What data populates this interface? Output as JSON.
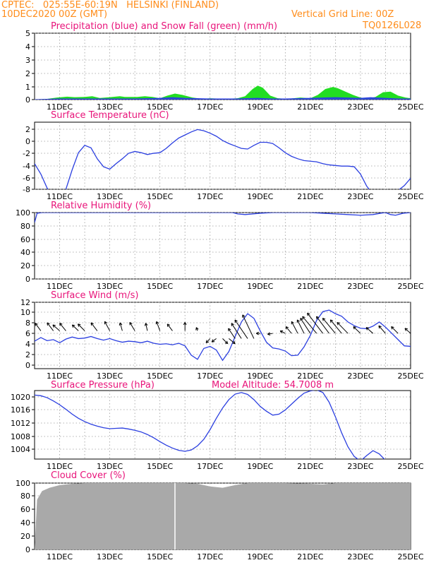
{
  "header": {
    "source_line": "CPTEC:   025:55E-60:19N   HELSINKI (FINLAND)",
    "init_line": "10DEC2020 00Z (GMT)",
    "grid_note": "Vertical Grid Line: 00Z",
    "run_code": "TQ0126L028"
  },
  "colors": {
    "orange_text": "#ff8c1a",
    "magenta_title": "#e8147a",
    "line_blue": "#2b3fe0",
    "snow_green": "#22dd22",
    "cloud_gray": "#a9a9a9",
    "grid": "#9a9a9a"
  },
  "x_axis": {
    "start_day": 10,
    "end_day": 25,
    "tick_labels": [
      "11DEC",
      "13DEC",
      "15DEC",
      "17DEC",
      "19DEC",
      "21DEC",
      "23DEC",
      "25DEC"
    ]
  },
  "chart_data": [
    {
      "type": "area",
      "title": "Precipitation (blue) and Snow Fall (green) (mm/h)",
      "ylim": [
        0,
        5
      ],
      "yticks": [
        "0",
        "1",
        "2",
        "3",
        "4",
        "5"
      ],
      "grid": true,
      "series": [
        {
          "name": "Snow Fall",
          "color": "#22dd22",
          "x": [
            "10.0 DEC",
            "10.5 DEC",
            "10.9 DEC",
            "11.3 DEC",
            "11.6 DEC",
            "12.0 DEC",
            "12.3 DEC",
            "12.6 DEC",
            "13.0 DEC",
            "13.4 DEC",
            "13.6 DEC",
            "14.1 DEC",
            "14.4 DEC",
            "14.7 DEC",
            "15.0 DEC",
            "15.3 DEC",
            "15.6 DEC",
            "15.9 DEC",
            "16.3 DEC",
            "16.7 DEC",
            "17.0 DEC",
            "17.6 DEC",
            "18.1 DEC",
            "18.4 DEC",
            "18.7 DEC",
            "18.9 DEC",
            "19.1 DEC",
            "19.4 DEC",
            "19.7 DEC",
            "20.1 DEC",
            "20.6 DEC",
            "21.0 DEC",
            "21.3 DEC",
            "21.6 DEC",
            "21.9 DEC",
            "22.1 DEC",
            "22.4 DEC",
            "22.7 DEC",
            "23.0 DEC",
            "23.3 DEC",
            "23.6 DEC",
            "23.9 DEC",
            "24.2 DEC",
            "24.5 DEC",
            "24.8 DEC",
            "25.0 DEC"
          ],
          "values": [
            0,
            0.05,
            0.15,
            0.22,
            0.18,
            0.2,
            0.25,
            0.12,
            0.18,
            0.25,
            0.2,
            0.2,
            0.25,
            0.2,
            0.1,
            0.3,
            0.45,
            0.35,
            0.15,
            0.05,
            0.1,
            0.05,
            0.1,
            0.25,
            0.8,
            1.05,
            0.9,
            0.3,
            0.1,
            0.05,
            0.15,
            0.1,
            0.35,
            0.8,
            0.95,
            0.85,
            0.6,
            0.35,
            0.15,
            0.08,
            0.2,
            0.55,
            0.6,
            0.3,
            0.15,
            0.1
          ]
        },
        {
          "name": "Precipitation",
          "color": "#2b3fe0",
          "x": [
            "10.0 DEC",
            "11.0 DEC",
            "12.0 DEC",
            "13.0 DEC",
            "14.0 DEC",
            "15.0 DEC",
            "15.5 DEC",
            "16.0 DEC",
            "17.0 DEC",
            "18.0 DEC",
            "18.9 DEC",
            "19.5 DEC",
            "20.0 DEC",
            "21.0 DEC",
            "22.0 DEC",
            "23.0 DEC",
            "23.4 DEC",
            "24.0 DEC",
            "24.5 DEC",
            "25.0 DEC"
          ],
          "values": [
            0,
            0.05,
            0.05,
            0.05,
            0.05,
            0.1,
            0.15,
            0.1,
            0.05,
            0.05,
            0.1,
            0.05,
            0.05,
            0.1,
            0.15,
            0.1,
            0.15,
            0.1,
            0.05,
            0.05
          ]
        }
      ]
    },
    {
      "type": "line",
      "title": "Surface Temperature (nC)",
      "ylim": [
        -8,
        3
      ],
      "yticks": [
        "-8",
        "-6",
        "-4",
        "-2",
        "0",
        "2"
      ],
      "grid": true,
      "series": [
        {
          "name": "",
          "color": "#2b3fe0",
          "x": [
            "10.0 DEC",
            "10.25 DEC",
            "10.5 DEC",
            "10.75 DEC",
            "11.0 DEC",
            "11.25 DEC",
            "11.5 DEC",
            "11.75 DEC",
            "12.0 DEC",
            "12.25 DEC",
            "12.5 DEC",
            "12.75 DEC",
            "13.0 DEC",
            "13.25 DEC",
            "13.5 DEC",
            "13.75 DEC",
            "14.0 DEC",
            "14.25 DEC",
            "14.5 DEC",
            "14.75 DEC",
            "15.0 DEC",
            "15.25 DEC",
            "15.5 DEC",
            "15.75 DEC",
            "16.0 DEC",
            "16.25 DEC",
            "16.5 DEC",
            "16.75 DEC",
            "17.0 DEC",
            "17.25 DEC",
            "17.5 DEC",
            "17.75 DEC",
            "18.0 DEC",
            "18.25 DEC",
            "18.5 DEC",
            "18.75 DEC",
            "19.0 DEC",
            "19.25 DEC",
            "19.5 DEC",
            "19.75 DEC",
            "20.0 DEC",
            "20.25 DEC",
            "20.5 DEC",
            "20.75 DEC",
            "21.0 DEC",
            "21.25 DEC",
            "21.5 DEC",
            "21.75 DEC",
            "22.0 DEC",
            "22.25 DEC",
            "22.5 DEC",
            "22.75 DEC",
            "23.0 DEC",
            "23.25 DEC",
            "23.5 DEC",
            "23.75 DEC",
            "24.0 DEC",
            "24.25 DEC",
            "24.5 DEC",
            "24.75 DEC",
            "25.0 DEC"
          ],
          "values": [
            -3.8,
            -5.5,
            -7.8,
            -9.5,
            -9.8,
            -8.0,
            -4.8,
            -2.0,
            -0.8,
            -1.2,
            -3.0,
            -4.3,
            -4.7,
            -3.8,
            -3.0,
            -2.1,
            -1.8,
            -2.0,
            -2.3,
            -2.1,
            -2.0,
            -1.3,
            -0.4,
            0.4,
            0.9,
            1.4,
            1.8,
            1.6,
            1.2,
            0.7,
            0.0,
            -0.5,
            -0.9,
            -1.3,
            -1.4,
            -0.8,
            -0.3,
            -0.3,
            -0.5,
            -1.2,
            -2.0,
            -2.6,
            -3.0,
            -3.3,
            -3.4,
            -3.5,
            -3.8,
            -4.0,
            -4.1,
            -4.2,
            -4.2,
            -4.3,
            -5.5,
            -7.5,
            -8.8,
            -9.3,
            -9.2,
            -8.8,
            -8.2,
            -7.4,
            -6.2
          ]
        }
      ]
    },
    {
      "type": "line",
      "title": "Relative Humidity (%)",
      "ylim": [
        0,
        100
      ],
      "yticks": [
        "0",
        "20",
        "40",
        "60",
        "80",
        "100"
      ],
      "grid": true,
      "series": [
        {
          "name": "",
          "color": "#2b3fe0",
          "x": [
            "10.0 DEC",
            "10.1 DEC",
            "10.3 DEC",
            "11.0 DEC",
            "12.0 DEC",
            "13.0 DEC",
            "14.0 DEC",
            "15.0 DEC",
            "16.0 DEC",
            "17.0 DEC",
            "17.9 DEC",
            "18.1 DEC",
            "18.4 DEC",
            "19.0 DEC",
            "19.5 DEC",
            "20.0 DEC",
            "20.5 DEC",
            "21.0 DEC",
            "21.5 DEC",
            "22.0 DEC",
            "22.5 DEC",
            "23.0 DEC",
            "23.5 DEC",
            "23.8 DEC",
            "24.0 DEC",
            "24.2 DEC",
            "24.4 DEC",
            "24.7 DEC",
            "25.0 DEC"
          ],
          "values": [
            85,
            99,
            100,
            100,
            100,
            100,
            100,
            100,
            100,
            100,
            100,
            98,
            97,
            99,
            100,
            100,
            100,
            100,
            99,
            98,
            97,
            96,
            97,
            99,
            100,
            97,
            96,
            99,
            100
          ]
        }
      ]
    },
    {
      "type": "line",
      "title": "Surface Wind (m/s)",
      "ylim": [
        -0.8,
        12
      ],
      "yticks": [
        "0",
        "2",
        "4",
        "6",
        "8",
        "10",
        "12"
      ],
      "grid": true,
      "series": [
        {
          "name": "",
          "color": "#2b3fe0",
          "x": [
            "10.0 DEC",
            "10.25 DEC",
            "10.5 DEC",
            "10.75 DEC",
            "11.0 DEC",
            "11.25 DEC",
            "11.5 DEC",
            "11.75 DEC",
            "12.0 DEC",
            "12.25 DEC",
            "12.5 DEC",
            "12.75 DEC",
            "13.0 DEC",
            "13.25 DEC",
            "13.5 DEC",
            "13.75 DEC",
            "14.0 DEC",
            "14.25 DEC",
            "14.5 DEC",
            "14.75 DEC",
            "15.0 DEC",
            "15.25 DEC",
            "15.5 DEC",
            "15.75 DEC",
            "16.0 DEC",
            "16.25 DEC",
            "16.5 DEC",
            "16.75 DEC",
            "17.0 DEC",
            "17.25 DEC",
            "17.5 DEC",
            "17.75 DEC",
            "18.0 DEC",
            "18.25 DEC",
            "18.5 DEC",
            "18.75 DEC",
            "19.0 DEC",
            "19.25 DEC",
            "19.5 DEC",
            "19.75 DEC",
            "20.0 DEC",
            "20.25 DEC",
            "20.5 DEC",
            "20.75 DEC",
            "21.0 DEC",
            "21.25 DEC",
            "21.5 DEC",
            "21.75 DEC",
            "22.0 DEC",
            "22.25 DEC",
            "22.5 DEC",
            "22.75 DEC",
            "23.0 DEC",
            "23.25 DEC",
            "23.5 DEC",
            "23.75 DEC",
            "24.0 DEC",
            "24.25 DEC",
            "24.5 DEC",
            "24.75 DEC",
            "25.0 DEC"
          ],
          "values": [
            4.5,
            5.2,
            4.6,
            4.8,
            4.2,
            4.9,
            5.3,
            5.0,
            5.1,
            5.4,
            5.0,
            4.7,
            5.0,
            4.6,
            4.3,
            4.5,
            4.4,
            4.2,
            4.5,
            4.1,
            3.9,
            4.0,
            3.8,
            4.1,
            3.6,
            1.8,
            1.0,
            3.1,
            3.5,
            2.8,
            0.8,
            2.5,
            5.4,
            8.2,
            9.8,
            8.9,
            6.5,
            4.3,
            3.2,
            3.0,
            2.6,
            1.7,
            1.8,
            3.4,
            5.6,
            8.5,
            10.2,
            10.5,
            9.8,
            9.3,
            8.2,
            7.5,
            7.0,
            6.9,
            7.4,
            8.2,
            7.2,
            6.0,
            4.8,
            3.6,
            3.5
          ]
        },
        {
          "name": "",
          "color": "#000000",
          "x": [
            "10.25 DEC",
            "10.75 DEC",
            "11.0 DEC",
            "11.25 DEC",
            "11.75 DEC",
            "12.0 DEC",
            "12.5 DEC",
            "13.0 DEC",
            "13.5 DEC",
            "14.0 DEC",
            "14.5 DEC",
            "15.0 DEC",
            "15.5 DEC",
            "16.0 DEC",
            "16.5 DEC",
            "17.0 DEC",
            "17.25 DEC",
            "17.5 DEC",
            "17.75 DEC",
            "18.0 DEC",
            "18.25 DEC",
            "18.5 DEC",
            "18.75 DEC",
            "19.0 DEC",
            "19.5 DEC",
            "20.0 DEC",
            "20.25 DEC",
            "20.5 DEC",
            "20.75 DEC",
            "21.0 DEC",
            "21.25 DEC",
            "21.5 DEC",
            "21.75 DEC",
            "22.0 DEC",
            "22.25 DEC",
            "22.5 DEC",
            "23.0 DEC",
            "23.5 DEC",
            "24.0 DEC",
            "24.5 DEC",
            "25.0 DEC"
          ],
          "y_level": [
            6.5,
            6.5,
            6.5,
            6.5,
            6.5,
            6.5,
            6.5,
            6.5,
            6.5,
            6.5,
            6.5,
            6.5,
            6.5,
            6.5,
            6.5,
            5.0,
            5.0,
            5.0,
            5.0,
            5.0,
            5.0,
            5.0,
            5.0,
            6.0,
            6.0,
            6.0,
            6.0,
            6.0,
            6.0,
            6.0,
            6.0,
            6.0,
            6.0,
            6.0,
            6.0,
            6.0,
            6.0,
            6.0,
            6.0,
            6.0,
            6.0
          ],
          "arrow_dx": [
            -0.2,
            -0.22,
            -0.24,
            -0.22,
            -0.22,
            -0.24,
            -0.22,
            -0.18,
            -0.08,
            -0.18,
            -0.06,
            -0.12,
            -0.18,
            0.0,
            -0.04,
            -0.14,
            -0.16,
            0.18,
            0.22,
            -0.24,
            -0.35,
            -0.45,
            -0.4,
            -0.14,
            -0.18,
            -0.18,
            -0.2,
            -0.22,
            -0.24,
            -0.35,
            -0.5,
            -0.55,
            -0.45,
            -0.45,
            -0.4,
            -0.38,
            -0.25,
            -0.24,
            -0.24,
            -0.24,
            -0.2
          ],
          "arrow_dy": [
            0.9,
            0.95,
            0.7,
            0.9,
            0.7,
            0.8,
            0.95,
            1.1,
            0.95,
            1.0,
            0.9,
            1.1,
            0.8,
            1.0,
            0.4,
            -0.5,
            -0.4,
            -0.6,
            -0.6,
            1.2,
            1.8,
            2.2,
            2.8,
            0.0,
            -0.1,
            0.3,
            0.8,
            1.4,
            1.6,
            1.8,
            2.0,
            2.4,
            2.0,
            1.8,
            1.6,
            1.3,
            0.8,
            0.7,
            0.9,
            0.8,
            0.6
          ]
        }
      ]
    },
    {
      "type": "line",
      "title": "Surface Pressure (hPa)",
      "annotation": "Model Altitude: 54.7008 m",
      "ylim": [
        1000.4,
        1021.6
      ],
      "yticks": [
        "1004",
        "1008",
        "1012",
        "1016",
        "1020"
      ],
      "grid": true,
      "series": [
        {
          "name": "",
          "color": "#2b3fe0",
          "x": [
            "10.0 DEC",
            "10.25 DEC",
            "10.5 DEC",
            "10.75 DEC",
            "11.0 DEC",
            "11.25 DEC",
            "11.5 DEC",
            "11.75 DEC",
            "12.0 DEC",
            "12.25 DEC",
            "12.5 DEC",
            "12.75 DEC",
            "13.0 DEC",
            "13.25 DEC",
            "13.5 DEC",
            "13.75 DEC",
            "14.0 DEC",
            "14.25 DEC",
            "14.5 DEC",
            "14.75 DEC",
            "15.0 DEC",
            "15.25 DEC",
            "15.5 DEC",
            "15.75 DEC",
            "16.0 DEC",
            "16.25 DEC",
            "16.5 DEC",
            "16.75 DEC",
            "17.0 DEC",
            "17.25 DEC",
            "17.5 DEC",
            "17.75 DEC",
            "18.0 DEC",
            "18.25 DEC",
            "18.5 DEC",
            "18.75 DEC",
            "19.0 DEC",
            "19.25 DEC",
            "19.5 DEC",
            "19.75 DEC",
            "20.0 DEC",
            "20.25 DEC",
            "20.5 DEC",
            "20.75 DEC",
            "21.0 DEC",
            "21.25 DEC",
            "21.5 DEC",
            "21.75 DEC",
            "22.0 DEC",
            "22.25 DEC",
            "22.5 DEC",
            "22.75 DEC",
            "23.0 DEC",
            "23.25 DEC",
            "23.5 DEC",
            "23.75 DEC",
            "24.0 DEC",
            "24.25 DEC",
            "24.5 DEC",
            "24.75 DEC",
            "25.0 DEC"
          ],
          "values": [
            1020.2,
            1020.0,
            1019.4,
            1018.4,
            1017.2,
            1015.8,
            1014.3,
            1013.0,
            1012.0,
            1011.2,
            1010.6,
            1010.1,
            1009.8,
            1009.9,
            1010.0,
            1009.7,
            1009.3,
            1008.8,
            1008.0,
            1007.0,
            1005.8,
            1004.7,
            1003.8,
            1003.1,
            1002.8,
            1003.2,
            1004.5,
            1006.5,
            1009.5,
            1013.0,
            1016.2,
            1018.8,
            1020.5,
            1021.0,
            1020.4,
            1018.8,
            1016.7,
            1015.2,
            1014.0,
            1014.3,
            1015.6,
            1017.4,
            1019.2,
            1020.8,
            1021.5,
            1021.8,
            1021.0,
            1018.0,
            1013.5,
            1008.5,
            1004.2,
            1001.2,
            999.8,
            1001.5,
            1003.0,
            1002.0,
            1000.0,
            999.0,
            998.5,
            998.8,
            999.0
          ]
        }
      ]
    },
    {
      "type": "area",
      "title": "Cloud Cover (%)",
      "ylim": [
        0,
        100
      ],
      "yticks": [
        "0",
        "20",
        "40",
        "60",
        "80",
        "100"
      ],
      "grid": true,
      "series": [
        {
          "name": "",
          "color": "#a9a9a9",
          "x": [
            "10.0 DEC",
            "10.1 DEC",
            "10.3 DEC",
            "10.6 DEC",
            "11.0 DEC",
            "11.5 DEC",
            "12.0 DEC",
            "13.0 DEC",
            "14.0 DEC",
            "15.0 DEC",
            "15.5 DEC",
            "16.0 DEC",
            "16.5 DEC",
            "17.0 DEC",
            "17.5 DEC",
            "18.0 DEC",
            "18.5 DEC",
            "19.0 DEC",
            "20.0 DEC",
            "21.0 DEC",
            "21.5 DEC",
            "22.0 DEC",
            "23.0 DEC",
            "24.0 DEC",
            "25.0 DEC"
          ],
          "values": [
            0,
            75,
            88,
            93,
            97,
            99,
            100,
            100,
            100,
            100,
            100,
            100,
            99,
            95,
            93,
            97,
            100,
            100,
            100,
            99,
            98,
            100,
            100,
            100,
            100
          ]
        }
      ]
    }
  ],
  "panel_titles": [
    "Precipitation (blue) and Snow Fall (green) (mm/h)",
    "Surface Temperature (nC)",
    "Relative Humidity (%)",
    "Surface Wind (m/s)",
    "Surface Pressure (hPa)",
    "Cloud Cover (%)"
  ],
  "pressure_annotation": "Model Altitude: 54.7008 m"
}
